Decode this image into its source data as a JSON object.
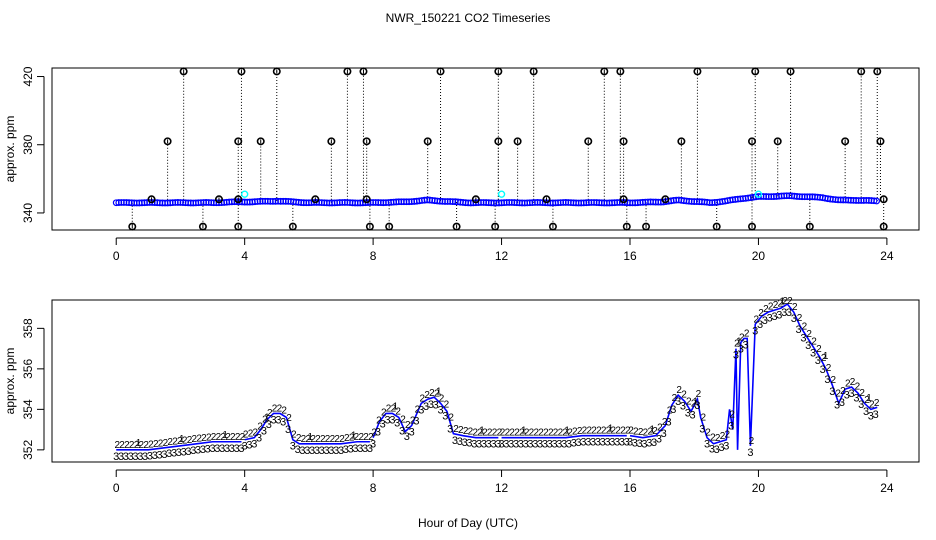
{
  "title": "NWR_150221  CO2 Timeseries",
  "xlabel": "Hour of Day (UTC)",
  "chart_data": [
    {
      "type": "scatter",
      "ylabel": "approx. ppm",
      "xlim": [
        -2,
        25
      ],
      "ylim": [
        330,
        425
      ],
      "xticks": [
        0,
        4,
        8,
        12,
        16,
        20,
        24
      ],
      "yticks": [
        340,
        380,
        420
      ],
      "colors": {
        "black": "#000000",
        "blue": "#0000ff",
        "cyan": "#00ffff",
        "line": "#0000ff"
      },
      "baseline": {
        "x": [
          0,
          1,
          2,
          3,
          3.8,
          4.2,
          5,
          6,
          7,
          8,
          9,
          9.7,
          10.5,
          11,
          12,
          13,
          14,
          15,
          16,
          17,
          17.5,
          18.5,
          19,
          19.5,
          20,
          21,
          22,
          22.5,
          23,
          23.7
        ],
        "y": [
          346,
          346,
          346,
          346,
          346.5,
          346.5,
          347,
          346,
          346,
          346,
          346.5,
          347.5,
          346.5,
          346,
          346,
          346,
          346,
          346,
          346,
          346.5,
          347.5,
          346,
          347,
          348.5,
          349.5,
          350,
          349,
          347.5,
          347.5,
          347
        ]
      },
      "outliers_high": [
        {
          "x": 1.6,
          "y": 382
        },
        {
          "x": 2.1,
          "y": 423
        },
        {
          "x": 3.8,
          "y": 382
        },
        {
          "x": 3.9,
          "y": 423
        },
        {
          "x": 4.5,
          "y": 382
        },
        {
          "x": 5.0,
          "y": 423
        },
        {
          "x": 6.7,
          "y": 382
        },
        {
          "x": 7.2,
          "y": 423
        },
        {
          "x": 7.7,
          "y": 423
        },
        {
          "x": 7.8,
          "y": 382
        },
        {
          "x": 9.7,
          "y": 382
        },
        {
          "x": 10.1,
          "y": 423
        },
        {
          "x": 11.9,
          "y": 382
        },
        {
          "x": 11.9,
          "y": 423
        },
        {
          "x": 12.5,
          "y": 382
        },
        {
          "x": 13.0,
          "y": 423
        },
        {
          "x": 14.7,
          "y": 382
        },
        {
          "x": 15.2,
          "y": 423
        },
        {
          "x": 15.7,
          "y": 423
        },
        {
          "x": 15.8,
          "y": 382
        },
        {
          "x": 17.6,
          "y": 382
        },
        {
          "x": 18.1,
          "y": 423
        },
        {
          "x": 19.8,
          "y": 382
        },
        {
          "x": 19.9,
          "y": 423
        },
        {
          "x": 20.6,
          "y": 382
        },
        {
          "x": 21.0,
          "y": 423
        },
        {
          "x": 22.7,
          "y": 382
        },
        {
          "x": 23.2,
          "y": 423
        },
        {
          "x": 23.7,
          "y": 423
        },
        {
          "x": 23.8,
          "y": 382
        }
      ],
      "outliers_mid": [
        {
          "x": 1.1,
          "y": 348
        },
        {
          "x": 3.2,
          "y": 348
        },
        {
          "x": 3.8,
          "y": 348
        },
        {
          "x": 6.2,
          "y": 348
        },
        {
          "x": 7.8,
          "y": 348
        },
        {
          "x": 11.2,
          "y": 348
        },
        {
          "x": 13.4,
          "y": 348
        },
        {
          "x": 15.8,
          "y": 348
        },
        {
          "x": 17.1,
          "y": 348
        },
        {
          "x": 23.9,
          "y": 348
        }
      ],
      "outliers_low": [
        {
          "x": 0.5,
          "y": 332
        },
        {
          "x": 2.7,
          "y": 332
        },
        {
          "x": 3.8,
          "y": 332
        },
        {
          "x": 5.5,
          "y": 332
        },
        {
          "x": 7.9,
          "y": 332
        },
        {
          "x": 8.5,
          "y": 332
        },
        {
          "x": 10.6,
          "y": 332
        },
        {
          "x": 11.8,
          "y": 332
        },
        {
          "x": 13.6,
          "y": 332
        },
        {
          "x": 15.9,
          "y": 332
        },
        {
          "x": 16.5,
          "y": 332
        },
        {
          "x": 18.7,
          "y": 332
        },
        {
          "x": 19.8,
          "y": 332
        },
        {
          "x": 21.6,
          "y": 332
        },
        {
          "x": 23.9,
          "y": 332
        }
      ],
      "cyan_points": [
        {
          "x": 4.0,
          "y": 351
        },
        {
          "x": 12.0,
          "y": 351
        },
        {
          "x": 20.0,
          "y": 351
        }
      ]
    },
    {
      "type": "line",
      "ylabel": "approx. ppm",
      "xlim": [
        -2,
        25
      ],
      "ylim": [
        351.4,
        359.4
      ],
      "xticks": [
        0,
        4,
        8,
        12,
        16,
        20,
        24
      ],
      "yticks": [
        352,
        354,
        356,
        358
      ],
      "colors": {
        "line": "#0000ff",
        "level1": "#ff0000",
        "level2": "#00cc00",
        "level3": "#0000ff"
      },
      "segments": [
        {
          "x": [
            0,
            0.5,
            1,
            1.5,
            2,
            2.5,
            3,
            3.5,
            3.9
          ],
          "y": [
            352.0,
            352.0,
            352.0,
            352.1,
            352.2,
            352.3,
            352.4,
            352.4,
            352.4
          ]
        },
        {
          "x": [
            4.0,
            4.3,
            4.5,
            4.7,
            4.9,
            5.1,
            5.3,
            5.5,
            5.7,
            6.0,
            6.5,
            7.0,
            7.5,
            7.9
          ],
          "y": [
            352.5,
            352.6,
            353.0,
            353.5,
            353.8,
            353.8,
            353.6,
            352.5,
            352.3,
            352.3,
            352.3,
            352.3,
            352.4,
            352.4
          ]
        },
        {
          "x": [
            8.0,
            8.2,
            8.4,
            8.6,
            8.8,
            9.0,
            9.2,
            9.5,
            9.7,
            9.9,
            10.1,
            10.3,
            10.5,
            10.8,
            11.2,
            11.6,
            11.9
          ],
          "y": [
            352.6,
            353.4,
            353.8,
            353.8,
            353.6,
            352.9,
            353.2,
            354.3,
            354.5,
            354.6,
            354.3,
            353.9,
            352.8,
            352.7,
            352.6,
            352.6,
            352.6
          ]
        },
        {
          "x": [
            12.0,
            12.5,
            13.0,
            13.5,
            14.0,
            14.5,
            15.0,
            15.5,
            15.9
          ],
          "y": [
            352.6,
            352.6,
            352.6,
            352.6,
            352.6,
            352.7,
            352.7,
            352.7,
            352.7
          ]
        },
        {
          "x": [
            16.0,
            16.4,
            16.8,
            17.1,
            17.3,
            17.5,
            17.7,
            17.9,
            18.1,
            18.2,
            18.4,
            18.6,
            18.8,
            19.0,
            19.1,
            19.2,
            19.3,
            19.35,
            19.45,
            19.55,
            19.65,
            19.75,
            19.9,
            20.1,
            20.3,
            20.5,
            20.7,
            20.9,
            21.1,
            21.3,
            21.5,
            21.7,
            21.9,
            22.1,
            22.3,
            22.5,
            22.7,
            22.9,
            23.1,
            23.3,
            23.5,
            23.7
          ],
          "y": [
            352.7,
            352.6,
            352.7,
            353.2,
            354.2,
            354.7,
            354.4,
            353.9,
            354.5,
            353.6,
            352.6,
            352.3,
            352.4,
            352.5,
            354.0,
            353.0,
            357.0,
            352.0,
            357.3,
            357.5,
            357.5,
            352.2,
            358.2,
            358.6,
            358.8,
            358.9,
            359.0,
            359.2,
            358.8,
            358.1,
            357.6,
            357.1,
            356.6,
            356.0,
            355.2,
            354.3,
            355.0,
            355.1,
            354.8,
            354.3,
            354.0,
            354.1
          ]
        }
      ]
    }
  ]
}
